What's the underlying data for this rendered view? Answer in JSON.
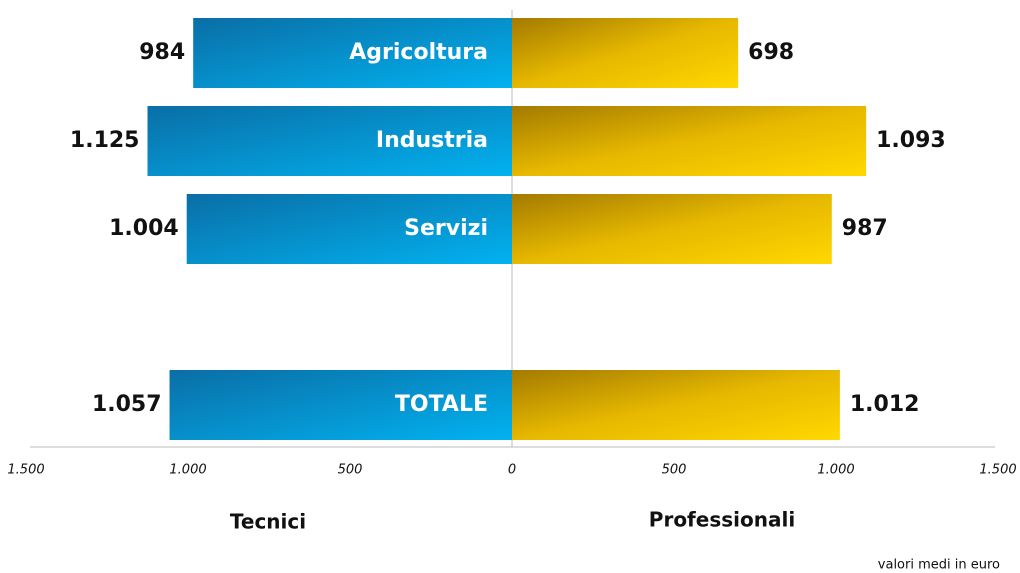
{
  "chart_data": {
    "type": "butterfly",
    "categories": [
      "Agricoltura",
      "Industria",
      "Servizi",
      null,
      "TOTALE"
    ],
    "series": [
      {
        "name": "Tecnici",
        "color": "#0a8fd0",
        "values": [
          984,
          1125,
          1004,
          null,
          1057
        ],
        "value_labels": [
          "984",
          "1.125",
          "1.004",
          null,
          "1.057"
        ]
      },
      {
        "name": "Professionali",
        "color": "#e8b800",
        "values": [
          698,
          1093,
          987,
          null,
          1012
        ],
        "value_labels": [
          "698",
          "1.093",
          "987",
          null,
          "1.012"
        ]
      }
    ],
    "xlim": [
      -1500,
      1500
    ],
    "xticks": [
      {
        "value": -1500,
        "label": "1.500"
      },
      {
        "value": -1000,
        "label": "1.000"
      },
      {
        "value": -500,
        "label": "500"
      },
      0,
      500,
      {
        "value": 1000,
        "label": "1.000"
      },
      {
        "value": 1500,
        "label": "1.500"
      }
    ],
    "note": "valori medi in euro"
  }
}
